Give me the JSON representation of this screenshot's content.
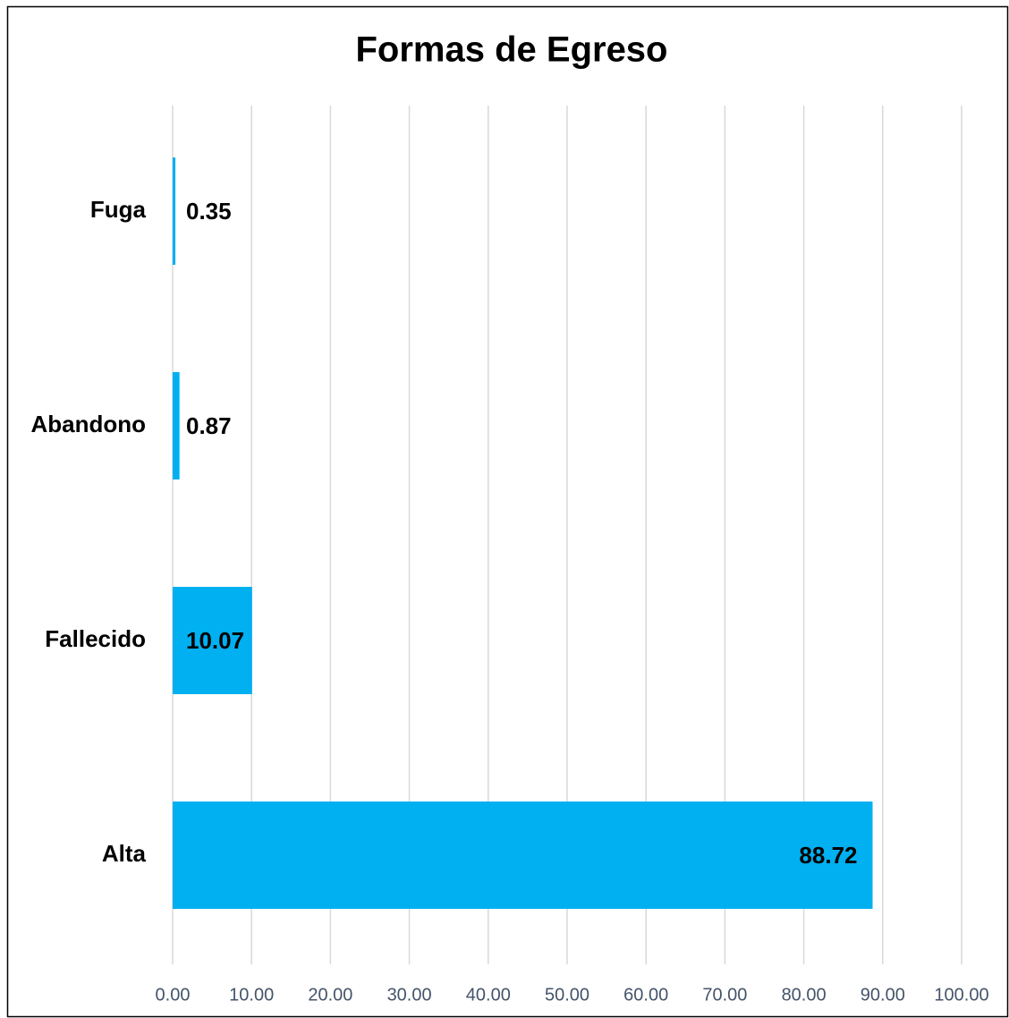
{
  "chart_data": {
    "type": "bar",
    "orientation": "horizontal",
    "title": "Formas de Egreso",
    "categories": [
      "Fuga",
      "Abandono",
      "Fallecido",
      "Alta"
    ],
    "values": [
      0.35,
      0.87,
      10.07,
      88.72
    ],
    "color": "#00b0f0",
    "xlim": [
      0,
      100
    ],
    "xticks": [
      {
        "value": 0,
        "label": "0.00"
      },
      {
        "value": 10,
        "label": "10.00"
      },
      {
        "value": 20,
        "label": "20.00"
      },
      {
        "value": 30,
        "label": "30.00"
      },
      {
        "value": 40,
        "label": "40.00"
      },
      {
        "value": 50,
        "label": "50.00"
      },
      {
        "value": 60,
        "label": "60.00"
      },
      {
        "value": 70,
        "label": "70.00"
      },
      {
        "value": 80,
        "label": "80.00"
      },
      {
        "value": 90,
        "label": "90.00"
      },
      {
        "value": 100,
        "label": "100.00"
      }
    ],
    "grid": true
  }
}
